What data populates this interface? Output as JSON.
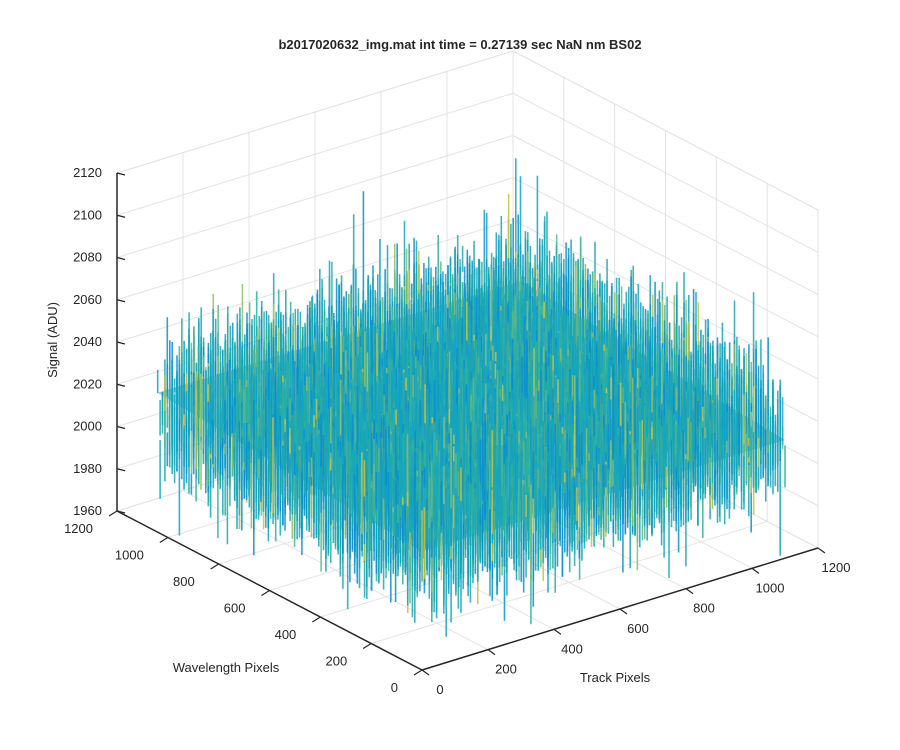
{
  "chart_data": {
    "type": "surface",
    "title": "b2017020632_img.mat int time = 0.27139 sec  NaN nm BS02",
    "xlabel": "Track Pixels",
    "ylabel": "Wavelength Pixels",
    "zlabel": "Signal (ADU)",
    "xlim": [
      0,
      1200
    ],
    "ylim": [
      0,
      1200
    ],
    "zlim": [
      1960,
      2120
    ],
    "xticks": [
      "0",
      "200",
      "400",
      "600",
      "800",
      "1000",
      "1200"
    ],
    "yticks": [
      "0",
      "200",
      "400",
      "600",
      "800",
      "1000",
      "1200"
    ],
    "zticks": [
      "1960",
      "1980",
      "2000",
      "2020",
      "2040",
      "2060",
      "2080",
      "2100",
      "2120"
    ],
    "grid": true,
    "colormap": "parula",
    "data_extent": {
      "track_pixels": [
        0,
        1100
      ],
      "wavelength_pixels": [
        0,
        1040
      ]
    },
    "signal_mean": 2020,
    "signal_range": [
      1960,
      2110
    ],
    "colors": {
      "background": "#ffffff",
      "axis": "#262626",
      "grid": "#e3e3e3"
    }
  }
}
